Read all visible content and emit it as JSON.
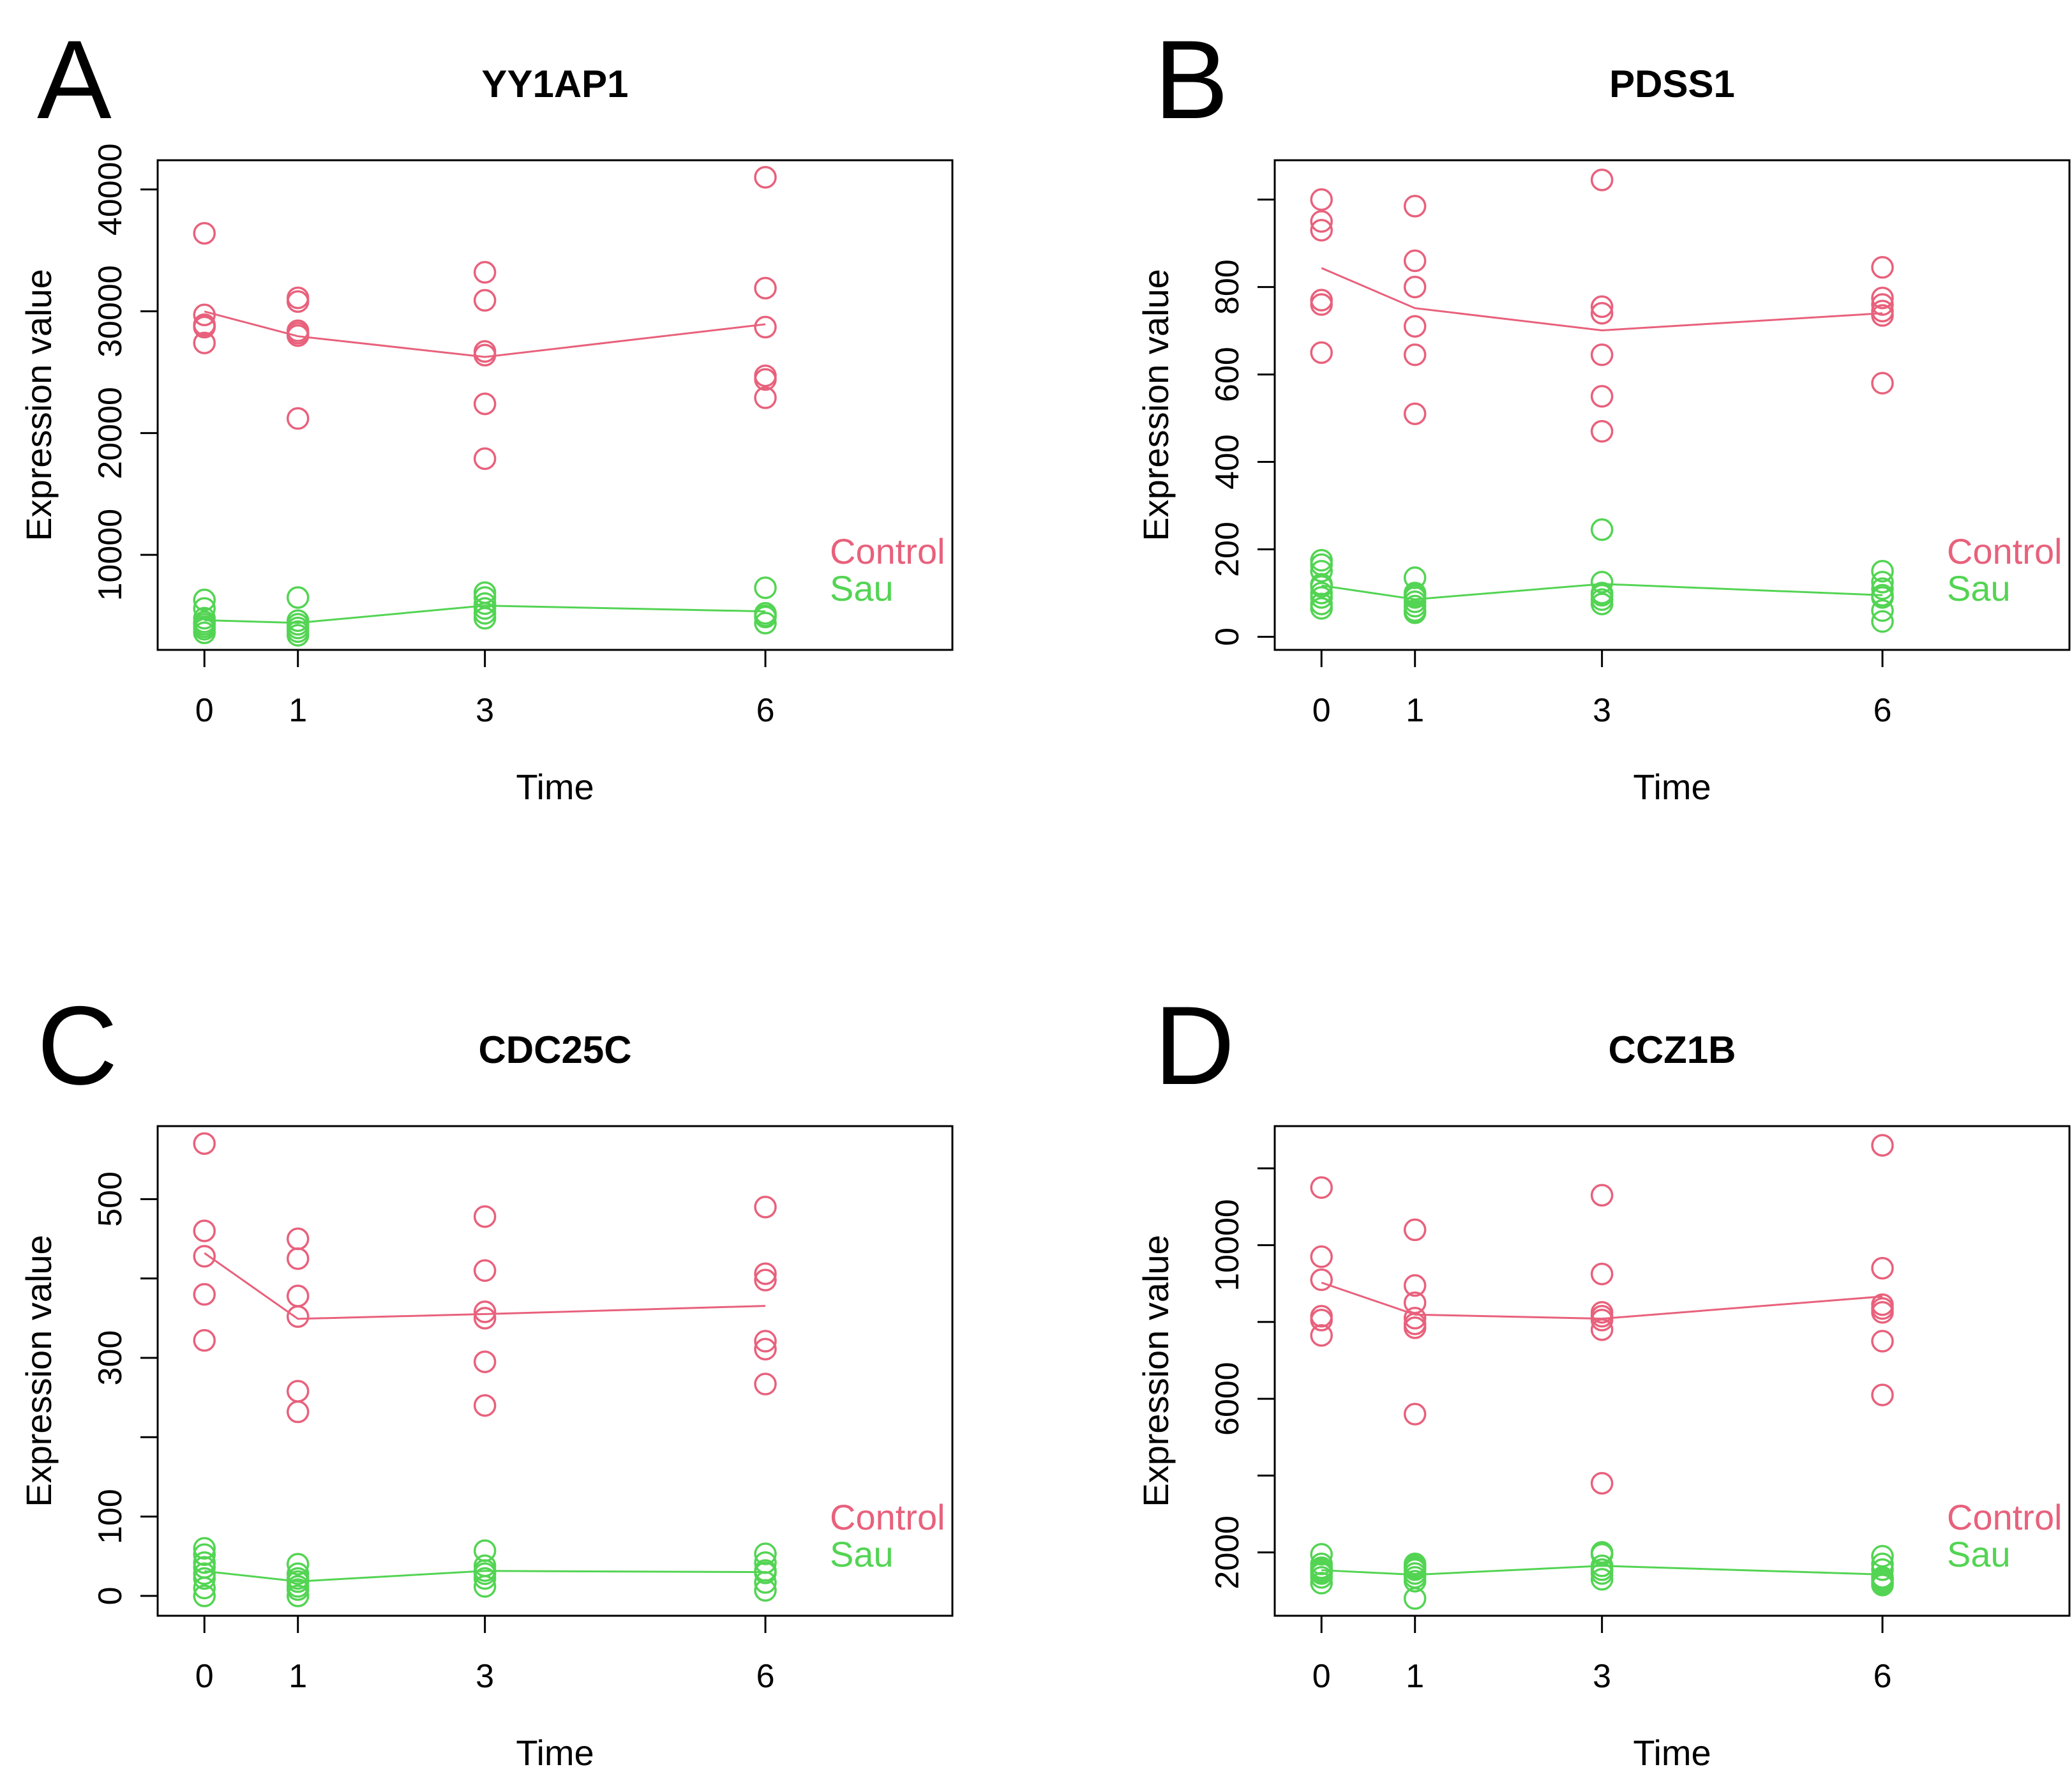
{
  "figure": {
    "background": "#ffffff",
    "axis_color": "#000000",
    "text_color": "#000000"
  },
  "colors": {
    "control": "#e8617c",
    "sau": "#53d453"
  },
  "legend": {
    "control_label": "Control",
    "sau_label": "Sau"
  },
  "chart_data": [
    {
      "panel": "A",
      "type": "scatter",
      "title": "YY1AP1",
      "xlabel": "Time",
      "ylabel": "Expression value",
      "x_ticks": [
        0,
        1,
        3,
        6
      ],
      "x_domain": [
        -0.5,
        8.0
      ],
      "ylim": [
        2200,
        42400
      ],
      "y_ticks": [
        {
          "v": 10000,
          "label": "10000"
        },
        {
          "v": 20000,
          "label": "20000"
        },
        {
          "v": 30000,
          "label": "30000"
        },
        {
          "v": 40000,
          "label": "40000"
        }
      ],
      "series": [
        {
          "name": "Control",
          "color_key": "control",
          "data": [
            {
              "x": 0,
              "ys": [
                36400,
                29700,
                28900,
                28800,
                28700,
                27400
              ]
            },
            {
              "x": 1,
              "ys": [
                31100,
                30800,
                28400,
                28200,
                28000,
                21200
              ]
            },
            {
              "x": 3,
              "ys": [
                33200,
                30900,
                26700,
                26400,
                22400,
                17900
              ]
            },
            {
              "x": 6,
              "ys": [
                41000,
                31900,
                28700,
                24700,
                24400,
                22900
              ]
            }
          ]
        },
        {
          "name": "Sau",
          "color_key": "sau",
          "data": [
            {
              "x": 0,
              "ys": [
                6300,
                5600,
                4800,
                4500,
                4300,
                4100,
                3900,
                3600
              ]
            },
            {
              "x": 1,
              "ys": [
                6500,
                4600,
                4300,
                4000,
                3700,
                3400
              ]
            },
            {
              "x": 3,
              "ys": [
                6900,
                6500,
                6000,
                5600,
                5200,
                4800
              ]
            },
            {
              "x": 6,
              "ys": [
                7300,
                5200,
                5000,
                4900,
                4400
              ]
            }
          ]
        }
      ]
    },
    {
      "panel": "B",
      "type": "scatter",
      "title": "PDSS1",
      "xlabel": "Time",
      "ylabel": "Expression value",
      "x_ticks": [
        0,
        1,
        3,
        6
      ],
      "x_domain": [
        -0.5,
        8.0
      ],
      "ylim": [
        -30,
        1090
      ],
      "y_ticks": [
        {
          "v": 0,
          "label": "0"
        },
        {
          "v": 200,
          "label": "200"
        },
        {
          "v": 400,
          "label": "400"
        },
        {
          "v": 600,
          "label": "600"
        },
        {
          "v": 800,
          "label": "800"
        },
        {
          "v": 1000,
          "label": ""
        }
      ],
      "series": [
        {
          "name": "Control",
          "color_key": "control",
          "data": [
            {
              "x": 0,
              "ys": [
                1000,
                950,
                930,
                770,
                760,
                650
              ]
            },
            {
              "x": 1,
              "ys": [
                985,
                860,
                800,
                710,
                645,
                510
              ]
            },
            {
              "x": 3,
              "ys": [
                1045,
                755,
                740,
                645,
                550,
                470
              ]
            },
            {
              "x": 6,
              "ys": [
                845,
                775,
                760,
                745,
                735,
                580
              ]
            }
          ]
        },
        {
          "name": "Sau",
          "color_key": "sau",
          "data": [
            {
              "x": 0,
              "ys": [
                175,
                165,
                150,
                120,
                115,
                100,
                90,
                75,
                65
              ]
            },
            {
              "x": 1,
              "ys": [
                135,
                100,
                95,
                90,
                80,
                70,
                60,
                55
              ]
            },
            {
              "x": 3,
              "ys": [
                245,
                125,
                100,
                95,
                85,
                75
              ]
            },
            {
              "x": 6,
              "ys": [
                150,
                125,
                110,
                95,
                90,
                60,
                35
              ]
            }
          ]
        }
      ]
    },
    {
      "panel": "C",
      "type": "scatter",
      "title": "CDC25C",
      "xlabel": "Time",
      "ylabel": "Expression value",
      "x_ticks": [
        0,
        1,
        3,
        6
      ],
      "x_domain": [
        -0.5,
        8.0
      ],
      "ylim": [
        -25,
        592
      ],
      "y_ticks": [
        {
          "v": 0,
          "label": "0"
        },
        {
          "v": 100,
          "label": "100"
        },
        {
          "v": 200,
          "label": ""
        },
        {
          "v": 300,
          "label": "300"
        },
        {
          "v": 400,
          "label": ""
        },
        {
          "v": 500,
          "label": "500"
        }
      ],
      "series": [
        {
          "name": "Control",
          "color_key": "control",
          "data": [
            {
              "x": 0,
              "ys": [
                570,
                460,
                428,
                380,
                322
              ]
            },
            {
              "x": 1,
              "ys": [
                450,
                425,
                378,
                352,
                258,
                232
              ]
            },
            {
              "x": 3,
              "ys": [
                478,
                410,
                358,
                350,
                295,
                240
              ]
            },
            {
              "x": 6,
              "ys": [
                490,
                406,
                398,
                321,
                311,
                267
              ]
            }
          ]
        },
        {
          "name": "Sau",
          "color_key": "sau",
          "data": [
            {
              "x": 0,
              "ys": [
                60,
                52,
                42,
                36,
                28,
                22,
                10,
                0
              ]
            },
            {
              "x": 1,
              "ys": [
                40,
                28,
                22,
                18,
                12,
                8,
                0
              ]
            },
            {
              "x": 3,
              "ys": [
                57,
                38,
                32,
                28,
                22,
                12
              ]
            },
            {
              "x": 6,
              "ys": [
                53,
                42,
                32,
                29,
                17,
                7
              ]
            }
          ]
        }
      ]
    },
    {
      "panel": "D",
      "type": "scatter",
      "title": "CCZ1B",
      "xlabel": "Time",
      "ylabel": "Expression value",
      "x_ticks": [
        0,
        1,
        3,
        6
      ],
      "x_domain": [
        -0.5,
        8.0
      ],
      "ylim": [
        350,
        13100
      ],
      "y_ticks": [
        {
          "v": 2000,
          "label": "2000"
        },
        {
          "v": 4000,
          "label": ""
        },
        {
          "v": 6000,
          "label": "6000"
        },
        {
          "v": 8000,
          "label": ""
        },
        {
          "v": 10000,
          "label": "10000"
        },
        {
          "v": 12000,
          "label": ""
        }
      ],
      "series": [
        {
          "name": "Control",
          "color_key": "control",
          "data": [
            {
              "x": 0,
              "ys": [
                11500,
                9700,
                9100,
                8150,
                8050,
                7650
              ]
            },
            {
              "x": 1,
              "ys": [
                10400,
                8950,
                8500,
                8100,
                7950,
                7850,
                5600
              ]
            },
            {
              "x": 3,
              "ys": [
                11300,
                9250,
                8250,
                8150,
                8050,
                7800,
                3800
              ]
            },
            {
              "x": 6,
              "ys": [
                12600,
                9400,
                8450,
                8350,
                8250,
                7500,
                6100
              ]
            }
          ]
        },
        {
          "name": "Sau",
          "color_key": "sau",
          "data": [
            {
              "x": 0,
              "ys": [
                1950,
                1700,
                1600,
                1550,
                1500,
                1450,
                1350,
                1200
              ]
            },
            {
              "x": 1,
              "ys": [
                1700,
                1650,
                1600,
                1550,
                1450,
                1350,
                1250,
                800
              ]
            },
            {
              "x": 3,
              "ys": [
                2000,
                1950,
                1650,
                1550,
                1450,
                1300
              ]
            },
            {
              "x": 6,
              "ys": [
                1900,
                1700,
                1550,
                1350,
                1300,
                1250,
                1200,
                1150
              ]
            }
          ]
        }
      ]
    }
  ]
}
